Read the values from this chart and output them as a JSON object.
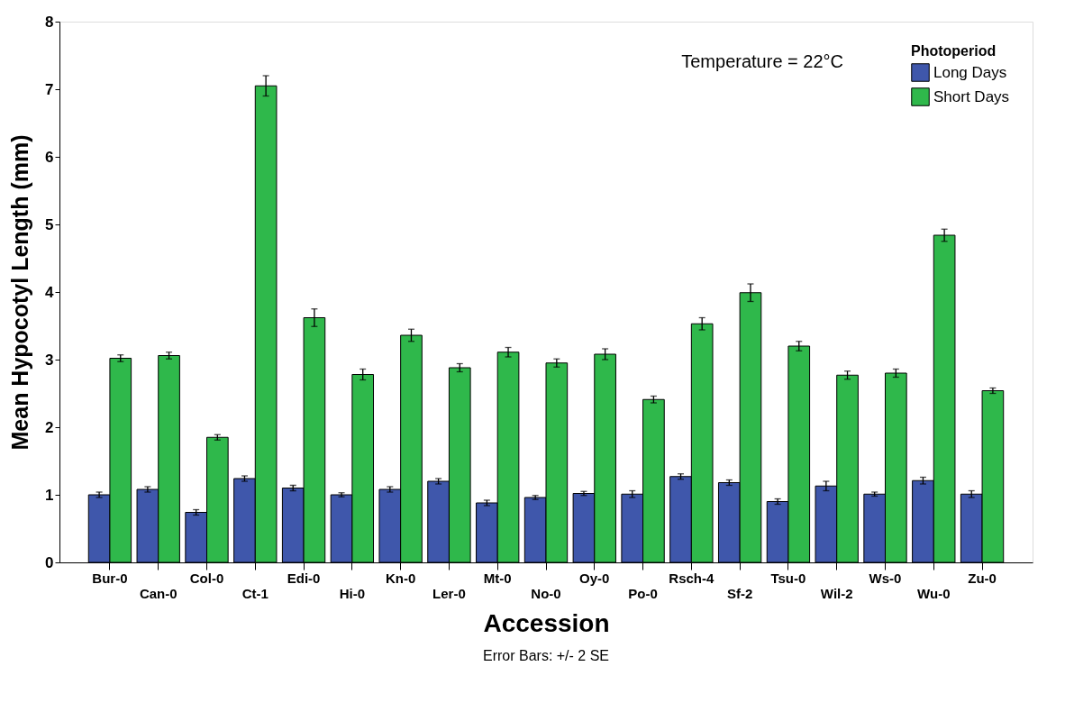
{
  "chart_data": {
    "type": "bar",
    "xlabel": "Accession",
    "ylabel": "Mean Hypocotyl Length (mm)",
    "legend_title": "Photoperiod",
    "legend": "top right",
    "grid": false,
    "categories": [
      "Bur-0",
      "Can-0",
      "Col-0",
      "Ct-1",
      "Edi-0",
      "Hi-0",
      "Kn-0",
      "Ler-0",
      "Mt-0",
      "No-0",
      "Oy-0",
      "Po-0",
      "Rsch-4",
      "Sf-2",
      "Tsu-0",
      "Wil-2",
      "Ws-0",
      "Wu-0",
      "Zu-0"
    ],
    "series": [
      {
        "name": "Long Days",
        "color": "#3f57ab",
        "values": [
          1.0,
          1.08,
          0.74,
          1.24,
          1.1,
          1.0,
          1.08,
          1.2,
          0.88,
          0.96,
          1.02,
          1.01,
          1.27,
          1.18,
          0.9,
          1.13,
          1.01,
          1.21,
          1.01
        ],
        "errors": [
          0.04,
          0.04,
          0.04,
          0.04,
          0.04,
          0.03,
          0.04,
          0.04,
          0.04,
          0.03,
          0.03,
          0.05,
          0.04,
          0.04,
          0.04,
          0.07,
          0.03,
          0.05,
          0.05
        ]
      },
      {
        "name": "Short Days",
        "color": "#2fb84b",
        "values": [
          3.02,
          3.06,
          1.85,
          7.05,
          3.62,
          2.78,
          3.36,
          2.88,
          3.11,
          2.95,
          3.08,
          2.41,
          3.53,
          3.99,
          3.2,
          2.77,
          2.8,
          4.84,
          2.54
        ],
        "errors": [
          0.05,
          0.05,
          0.04,
          0.15,
          0.13,
          0.08,
          0.09,
          0.06,
          0.07,
          0.06,
          0.08,
          0.05,
          0.09,
          0.13,
          0.07,
          0.06,
          0.06,
          0.09,
          0.04
        ]
      }
    ],
    "ylim": [
      0,
      8
    ],
    "yticks": [
      0,
      1,
      2,
      3,
      4,
      5,
      6,
      7,
      8
    ],
    "annotations": [
      "Temperature = 22°C",
      "Error Bars: +/- 2 SE"
    ]
  }
}
